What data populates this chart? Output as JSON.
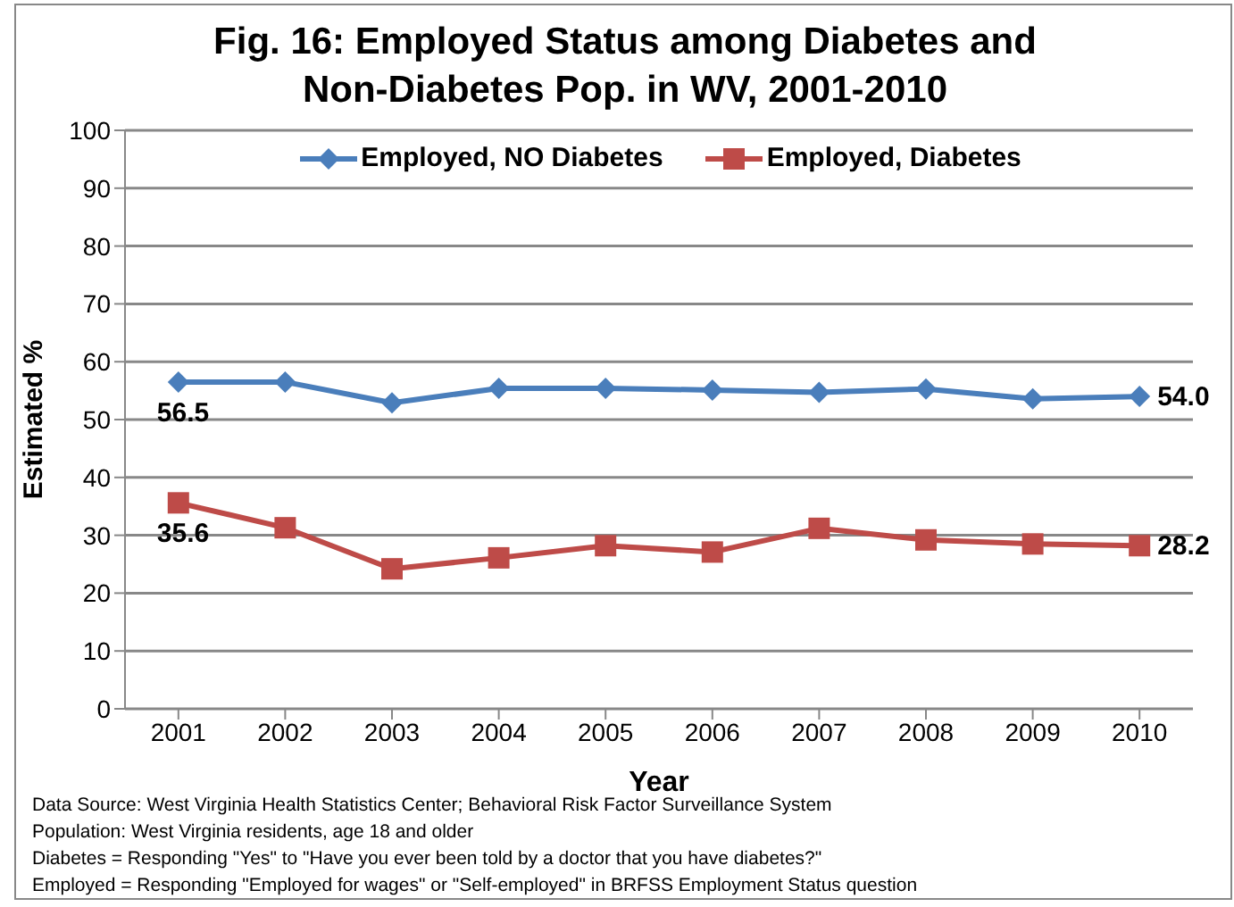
{
  "chart_data": {
    "type": "line",
    "title": "Fig. 16:  Employed Status among Diabetes and Non-Diabetes Pop. in WV, 2001-2010",
    "xlabel": "Year",
    "ylabel": "Estimated %",
    "categories": [
      "2001",
      "2002",
      "2003",
      "2004",
      "2005",
      "2006",
      "2007",
      "2008",
      "2009",
      "2010"
    ],
    "series": [
      {
        "name": "Employed, NO Diabetes",
        "color": "#4a7ebb",
        "marker": "diamond",
        "values": [
          56.5,
          56.5,
          52.9,
          55.4,
          55.4,
          55.1,
          54.7,
          55.3,
          53.6,
          54.0
        ],
        "value_labels": [
          "56.5",
          null,
          null,
          null,
          null,
          null,
          null,
          null,
          null,
          "54.0"
        ]
      },
      {
        "name": "Employed, Diabetes",
        "color": "#be4b48",
        "marker": "square",
        "values": [
          35.6,
          31.3,
          24.2,
          26.1,
          28.2,
          27.1,
          31.2,
          29.2,
          28.5,
          28.2
        ],
        "value_labels": [
          "35.6",
          null,
          null,
          null,
          null,
          null,
          null,
          null,
          null,
          "28.2"
        ]
      }
    ],
    "ylim": [
      0,
      100
    ],
    "yticks": [
      0,
      10,
      20,
      30,
      40,
      50,
      60,
      70,
      80,
      90,
      100
    ],
    "grid": "y",
    "legend": "top",
    "annotations": [
      "Data Source: West Virginia Health Statistics Center; Behavioral Risk Factor Surveillance System",
      "Population: West Virginia residents, age 18 and older",
      "Diabetes = Responding \"Yes\" to \"Have you ever been told by a doctor that you have diabetes?\"",
      "Employed = Responding \"Employed for wages\" or \"Self-employed\" in BRFSS Employment Status question"
    ]
  }
}
